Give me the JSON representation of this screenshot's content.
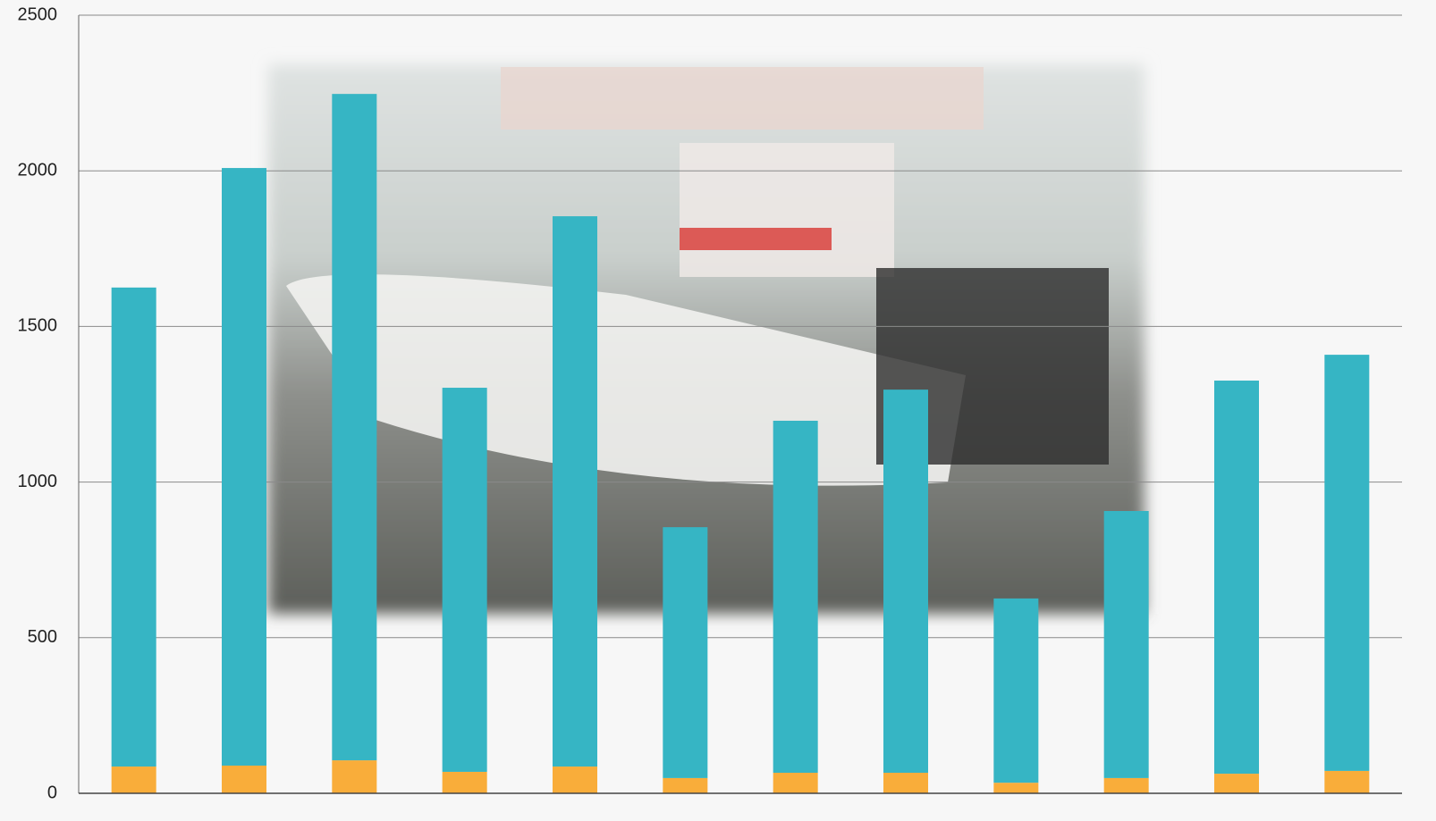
{
  "chart_data": {
    "type": "stacked-bar",
    "categories": [
      null,
      null,
      null,
      null,
      null,
      null,
      null,
      null,
      null,
      null,
      null,
      null
    ],
    "series": [
      {
        "color": "#f9ad3a",
        "values": [
          86,
          89,
          106,
          69,
          86,
          49,
          66,
          66,
          34,
          49,
          63,
          72
        ]
      },
      {
        "color": "#36b5c4",
        "values": [
          1539,
          1920,
          2141,
          1234,
          1768,
          806,
          1131,
          1231,
          592,
          858,
          1263,
          1337
        ]
      }
    ],
    "ylim": [
      0,
      2500
    ],
    "yticks": [
      0,
      500,
      1000,
      1500,
      2000,
      2500
    ],
    "grid": true
  }
}
